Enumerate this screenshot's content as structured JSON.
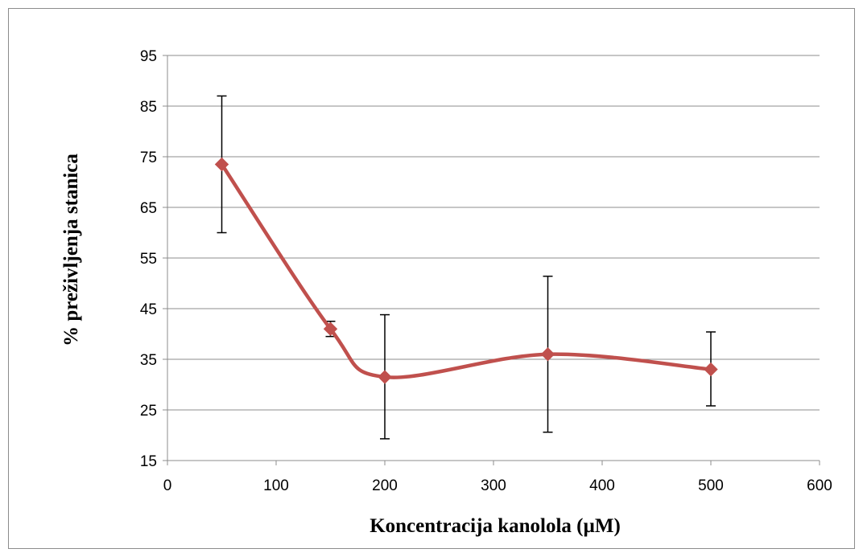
{
  "chart_data": {
    "type": "line",
    "title": "",
    "xlabel": "Koncentracija kanolola (µM)",
    "ylabel": "% preživljenja stanica",
    "xlim": [
      0,
      600
    ],
    "ylim": [
      15,
      95
    ],
    "x_ticks": [
      0,
      100,
      200,
      300,
      400,
      500,
      600
    ],
    "y_ticks": [
      15,
      25,
      35,
      45,
      55,
      65,
      75,
      85,
      95
    ],
    "grid": "horizontal",
    "legend": "none",
    "smooth": true,
    "colors": {
      "line": "#c0504d",
      "marker": "#c0504d",
      "grid": "#8c8c8c",
      "error_bar": "#000000",
      "frame": "#8c8c8c"
    },
    "series": [
      {
        "x": [
          50,
          150,
          200,
          350,
          500
        ],
        "y": [
          73.5,
          41,
          31.5,
          36,
          33
        ],
        "error_low": [
          60,
          39.5,
          19.3,
          20.6,
          25.8
        ],
        "error_high": [
          87,
          42.5,
          43.8,
          51.4,
          40.4
        ]
      }
    ]
  }
}
